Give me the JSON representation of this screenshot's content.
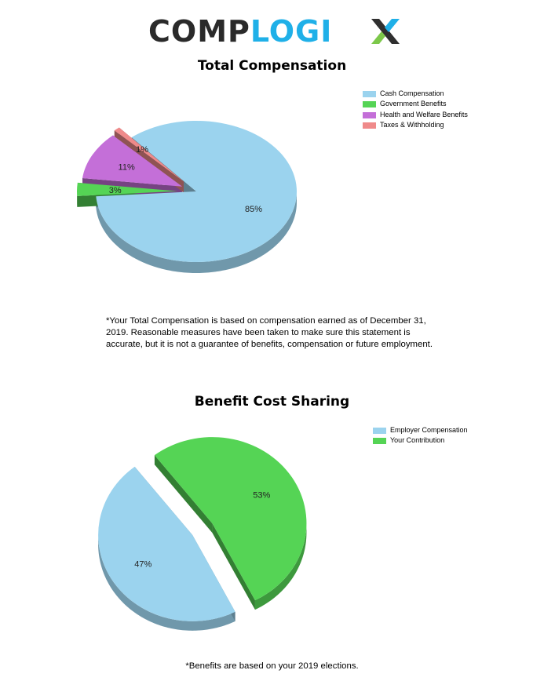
{
  "logo": {
    "part1": "COMP",
    "part2": "LOGI",
    "part3": "X"
  },
  "chart_data": [
    {
      "type": "pie",
      "title": "Total Compensation",
      "legend_position": "top-right",
      "categories": [
        "Cash Compensation",
        "Government Benefits",
        "Health and Welfare Benefits",
        "Taxes & Withholding"
      ],
      "values": [
        85,
        3,
        11,
        1
      ],
      "value_labels": [
        "85%",
        "3%",
        "11%",
        "1%"
      ],
      "colors": [
        "#9bd3ee",
        "#55d455",
        "#c46fd8",
        "#ef8a8a"
      ],
      "note": "*Your Total Compensation is based on compensation earned as of December 31, 2019. Reasonable measures have been taken to make sure this statement is accurate, but it is not a guarantee of benefits, compensation or future employment."
    },
    {
      "type": "pie",
      "title": "Benefit Cost Sharing",
      "legend_position": "top-right",
      "categories": [
        "Employer Compensation",
        "Your Contribution"
      ],
      "values": [
        47,
        53
      ],
      "value_labels": [
        "47%",
        "53%"
      ],
      "colors": [
        "#9bd3ee",
        "#55d455"
      ],
      "note": "*Benefits are based on your 2019 elections."
    }
  ]
}
